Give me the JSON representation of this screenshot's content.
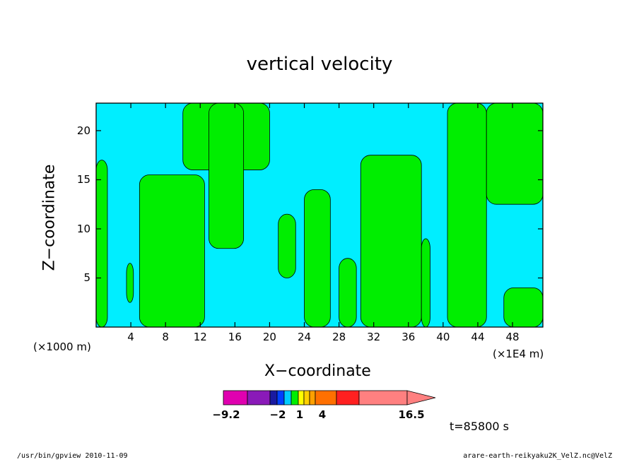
{
  "chart_data": {
    "type": "heatmap",
    "title": "vertical velocity",
    "xlabel": "X−coordinate",
    "ylabel": "Z−coordinate",
    "x_unit_left": "(×1000 m)",
    "x_unit_right": "(×1E4 m)",
    "xlim": [
      0,
      51.5
    ],
    "ylim": [
      0,
      22.8
    ],
    "x_ticks": [
      4,
      8,
      12,
      16,
      20,
      24,
      28,
      32,
      36,
      40,
      44,
      48
    ],
    "y_ticks": [
      5,
      10,
      15,
      20
    ],
    "x_tick_labels": [
      "4",
      "8",
      "12",
      "16",
      "20",
      "24",
      "28",
      "32",
      "36",
      "40",
      "44",
      "48"
    ],
    "y_tick_labels": [
      "5",
      "10",
      "15",
      "20"
    ],
    "field_colors": {
      "negative": "#00eeff",
      "positive": "#00ee00"
    },
    "positive_regions": [
      {
        "x": [
          0,
          1.3
        ],
        "y": [
          0,
          17
        ]
      },
      {
        "x": [
          3.5,
          4.3
        ],
        "y": [
          2.5,
          6.5
        ]
      },
      {
        "x": [
          5,
          12.5
        ],
        "y": [
          0,
          15.5
        ]
      },
      {
        "x": [
          10,
          20
        ],
        "y": [
          16,
          22.8
        ]
      },
      {
        "x": [
          13,
          17
        ],
        "y": [
          8,
          22.8
        ]
      },
      {
        "x": [
          21,
          23
        ],
        "y": [
          5,
          11.5
        ]
      },
      {
        "x": [
          24,
          27
        ],
        "y": [
          0,
          14
        ]
      },
      {
        "x": [
          28,
          30
        ],
        "y": [
          0,
          7
        ]
      },
      {
        "x": [
          30.5,
          37.5
        ],
        "y": [
          0,
          17.5
        ]
      },
      {
        "x": [
          37.5,
          38.5
        ],
        "y": [
          0,
          9
        ]
      },
      {
        "x": [
          40.5,
          45
        ],
        "y": [
          0,
          22.8
        ]
      },
      {
        "x": [
          45,
          51.5
        ],
        "y": [
          12.5,
          22.8
        ]
      },
      {
        "x": [
          47,
          51.5
        ],
        "y": [
          0,
          4
        ]
      }
    ],
    "colorbar": {
      "colors": [
        "#e000b0",
        "#8a1ab8",
        "#1a1aa0",
        "#0040ff",
        "#00ccff",
        "#00ee00",
        "#ffff00",
        "#ffd000",
        "#ffa000",
        "#ff7000",
        "#ff2020",
        "#ff8080"
      ],
      "tick_labels": [
        "−9.2",
        "−2",
        "1",
        "4",
        "16.5"
      ]
    }
  },
  "annotation": {
    "time": "t=85800 s",
    "footer_left": "/usr/bin/gpview  2010-11-09",
    "footer_right": "arare-earth-reikyaku2K_VelZ.nc@VelZ"
  }
}
